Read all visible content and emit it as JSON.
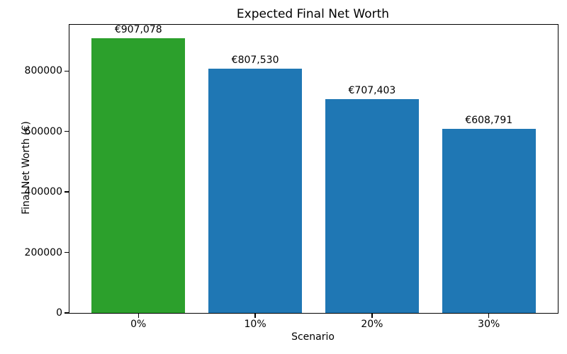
{
  "chart_data": {
    "type": "bar",
    "title": "Expected Final Net Worth",
    "xlabel": "Scenario",
    "ylabel": "Final Net Worth (€)",
    "categories": [
      "0%",
      "10%",
      "20%",
      "30%"
    ],
    "values": [
      907078,
      807530,
      707403,
      608791
    ],
    "value_labels": [
      "€907,078",
      "€807,530",
      "€707,403",
      "€608,791"
    ],
    "bar_colors": [
      "#2ca02c",
      "#1f77b4",
      "#1f77b4",
      "#1f77b4"
    ],
    "yticks": [
      0,
      200000,
      400000,
      600000,
      800000
    ],
    "ytick_labels": [
      "0",
      "200000",
      "400000",
      "600000",
      "800000"
    ],
    "ylim": [
      0,
      952432
    ],
    "grid": false,
    "legend": null,
    "colors": {
      "highlight_green": "#2ca02c",
      "default_blue": "#1f77b4",
      "axis_black": "#000000",
      "background": "#ffffff"
    }
  }
}
